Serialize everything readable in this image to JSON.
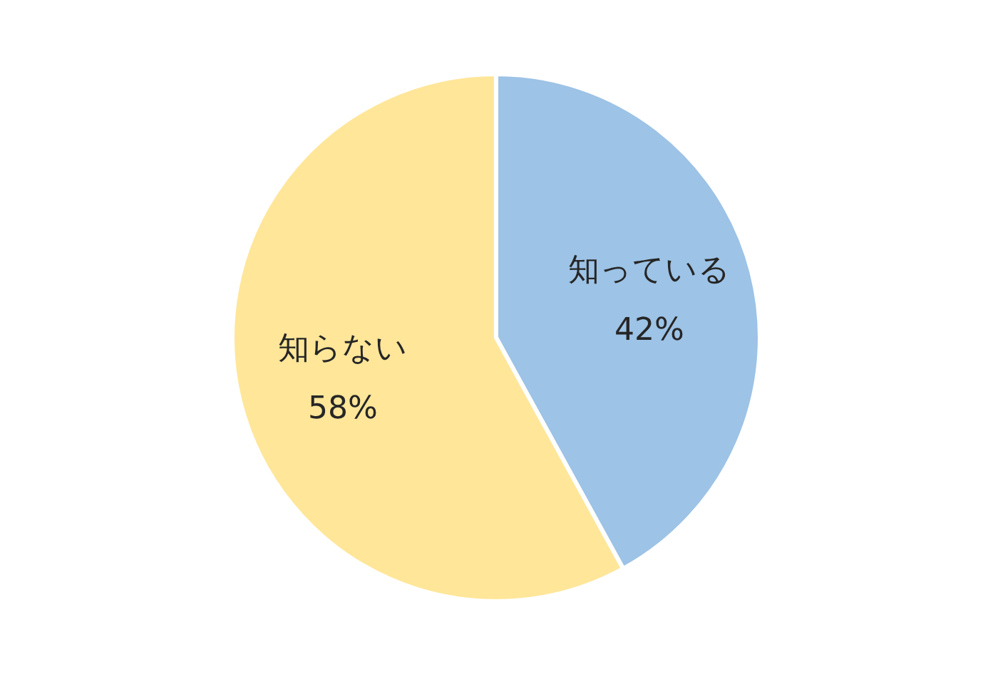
{
  "chart_data": {
    "type": "pie",
    "categories": [
      "知っている",
      "知らない"
    ],
    "values": [
      42,
      58
    ],
    "colors": [
      "#9dc3e6",
      "#ffe699"
    ],
    "value_labels": [
      "42%",
      "58%"
    ]
  }
}
